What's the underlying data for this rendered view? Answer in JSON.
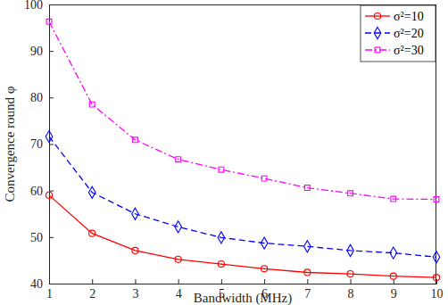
{
  "chart_data": {
    "type": "line",
    "x_label": "Bandwidth (MHz)",
    "y_label": "Convergence round φ",
    "x": [
      1,
      2,
      3,
      4,
      5,
      6,
      7,
      8,
      9,
      10
    ],
    "xlim": [
      1,
      10
    ],
    "xticks": [
      1,
      2,
      3,
      4,
      5,
      6,
      7,
      8,
      9,
      10
    ],
    "ylim": [
      40,
      100
    ],
    "yticks": [
      40,
      50,
      60,
      70,
      80,
      90,
      100
    ],
    "grid": false,
    "legend": "top-right",
    "series": [
      {
        "name": "σ²=10",
        "color": "#ff0000",
        "marker": "circle",
        "line_style": "solid",
        "values": [
          59.0,
          50.8,
          47.1,
          45.2,
          44.2,
          43.2,
          42.4,
          42.1,
          41.6,
          41.3
        ]
      },
      {
        "name": "σ²=20",
        "color": "#0000ff",
        "marker": "diamond",
        "line_style": "dashed",
        "values": [
          71.6,
          59.6,
          55.0,
          52.2,
          49.9,
          48.7,
          48.0,
          47.1,
          46.6,
          45.7
        ]
      },
      {
        "name": "σ²=30",
        "color": "#ff00ff",
        "marker": "square",
        "line_style": "dashdot",
        "values": [
          96.3,
          78.5,
          70.9,
          66.7,
          64.5,
          62.6,
          60.6,
          59.4,
          58.2,
          58.1
        ]
      }
    ]
  }
}
